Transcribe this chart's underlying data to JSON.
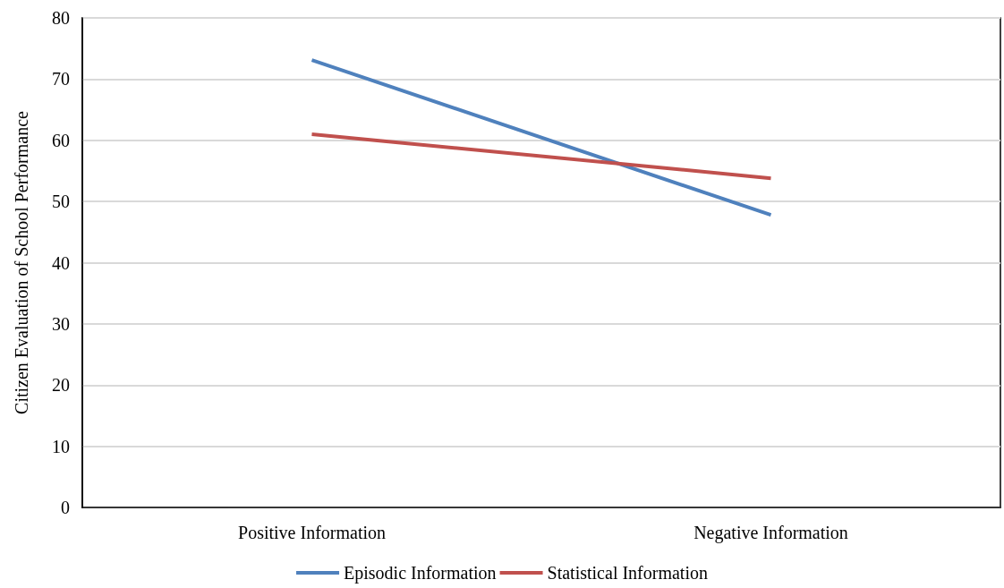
{
  "chart_data": {
    "type": "line",
    "ylabel": "Citizen Evaluation of School Performance",
    "categories": [
      "Positive Information",
      "Negative Information"
    ],
    "series": [
      {
        "name": "Episodic Information",
        "color": "#4f81bd",
        "values": [
          73.1,
          47.8
        ]
      },
      {
        "name": "Statistical Information",
        "color": "#c0504d",
        "values": [
          61.0,
          53.8
        ]
      }
    ],
    "ylim": [
      0,
      80
    ],
    "yticks": [
      0,
      10,
      20,
      30,
      40,
      50,
      60,
      70,
      80
    ],
    "grid": "y",
    "legend": "bottom",
    "marker": "none",
    "line_style": "solid"
  }
}
